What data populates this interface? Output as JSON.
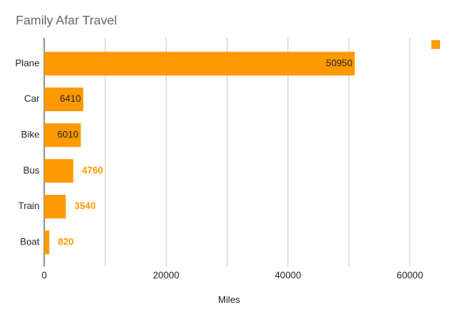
{
  "chart_data": {
    "type": "hbar",
    "title": "Family Afar Travel",
    "x_label": "Miles",
    "categories": [
      "Plane",
      "Car",
      "Bike",
      "Bus",
      "Train",
      "Boat"
    ],
    "values": [
      50950,
      6410,
      6010,
      4760,
      3540,
      820
    ],
    "color": "#ff9900",
    "xlim": [
      0,
      70000
    ],
    "xticks": [
      0,
      20000,
      40000,
      60000
    ],
    "xminorticks": [
      10000,
      30000,
      50000
    ],
    "grid": true
  }
}
